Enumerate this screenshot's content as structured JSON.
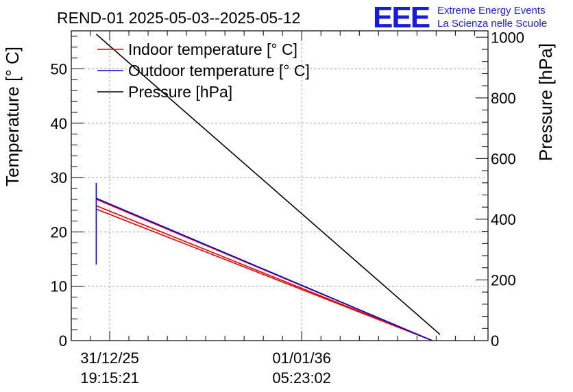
{
  "chart_data": {
    "type": "line",
    "title": "REND-01 2025-05-03--2025-05-12",
    "ylabel": "Temperature [° C]",
    "y2label": "Pressure [hPa]",
    "ylim": [
      0,
      57
    ],
    "y2lim": [
      0,
      1021
    ],
    "yticks": [
      0,
      10,
      20,
      30,
      40,
      50
    ],
    "y2ticks": [
      0,
      200,
      400,
      600,
      800,
      1000
    ],
    "xlim": [
      -0.2,
      1.97
    ],
    "xticks": [
      {
        "pos": 0,
        "date": "31/12/25",
        "time": "19:15:21"
      },
      {
        "pos": 1,
        "date": "01/01/36",
        "time": "05:23:02"
      }
    ],
    "legend_position": "top-left",
    "series": [
      {
        "name": "Indoor temperature [° C]",
        "axis": "left",
        "color": "#e00000",
        "segments": [
          [
            [
              -0.07,
              24.2
            ],
            [
              1.68,
              0
            ]
          ],
          [
            [
              -0.07,
              24.8
            ],
            [
              1.68,
              0
            ]
          ],
          [
            [
              -0.07,
              26.0
            ],
            [
              1.68,
              0
            ]
          ]
        ]
      },
      {
        "name": "Outdoor temperature [° C]",
        "axis": "left",
        "color": "#0000e0",
        "segments": [
          [
            [
              -0.07,
              14.0
            ],
            [
              -0.07,
              29.0
            ]
          ],
          [
            [
              -0.07,
              26.2
            ],
            [
              1.68,
              0
            ]
          ]
        ]
      },
      {
        "name": "Pressure [hPa]",
        "axis": "right",
        "color": "#000000",
        "segments": [
          [
            [
              -0.07,
              1010
            ],
            [
              1.72,
              20
            ]
          ]
        ]
      }
    ]
  },
  "logo": {
    "mark": "EEE",
    "line1": "Extreme Energy Events",
    "line2": "La Scienza nelle Scuole",
    "color": "#1a1adb"
  }
}
